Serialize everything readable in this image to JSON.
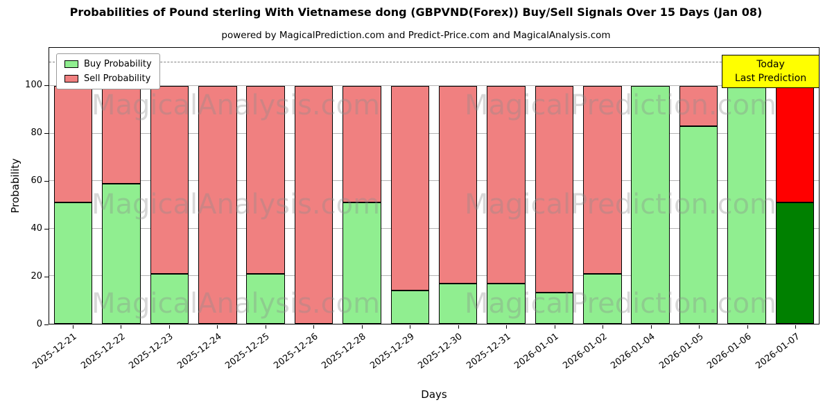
{
  "title": "Probabilities of Pound sterling With Vietnamese dong (GBPVND(Forex)) Buy/Sell Signals Over 15 Days (Jan 08)",
  "subtitle": "powered by MagicalPrediction.com and Predict-Price.com and MagicalAnalysis.com",
  "today_box": {
    "line1": "Today",
    "line2": "Last Prediction"
  },
  "watermark": {
    "left": "MagicalAnalysis.com",
    "right": "MagicalPrediction.com"
  },
  "chart_data": {
    "type": "bar",
    "stacked": true,
    "title": "Probabilities of Pound sterling With Vietnamese dong (GBPVND(Forex)) Buy/Sell Signals Over 15 Days (Jan 08)",
    "xlabel": "Days",
    "ylabel": "Probability",
    "ylim": [
      0,
      116
    ],
    "yticks": [
      0,
      20,
      40,
      60,
      80,
      100
    ],
    "grid": true,
    "dashed_line_y": 110,
    "legend_position": "upper-left",
    "categories": [
      "2025-12-21",
      "2025-12-22",
      "2025-12-23",
      "2025-12-24",
      "2025-12-25",
      "2025-12-26",
      "2025-12-28",
      "2025-12-29",
      "2025-12-30",
      "2025-12-31",
      "2026-01-01",
      "2026-01-02",
      "2026-01-04",
      "2026-01-05",
      "2026-01-06",
      "2026-01-07"
    ],
    "series": [
      {
        "name": "Buy Probability",
        "color": "#90EE90",
        "values": [
          51,
          59,
          21,
          0,
          21,
          0,
          51,
          14,
          17,
          17,
          13,
          21,
          100,
          83,
          100,
          51
        ]
      },
      {
        "name": "Sell Probability",
        "color": "#F08080",
        "values": [
          49,
          41,
          79,
          100,
          79,
          100,
          49,
          86,
          83,
          83,
          87,
          79,
          0,
          17,
          0,
          49
        ]
      }
    ],
    "last_bar_colors": {
      "buy": "#008000",
      "sell": "#FF0000"
    }
  }
}
